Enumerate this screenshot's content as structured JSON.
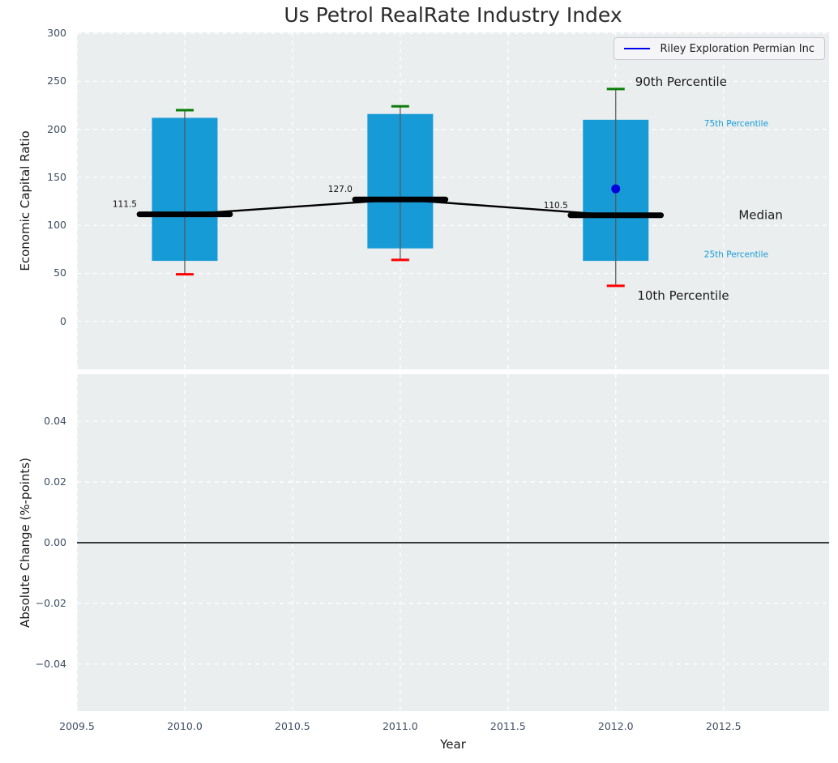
{
  "colors": {
    "box_fill": "#179bd7",
    "whisker_line": "#555555",
    "cap_90": "#0a7d0a",
    "cap_10": "#ff0000",
    "median": "#000000",
    "company_point": "#0000dd",
    "guide_label_blue": "#189cd8",
    "guide_label_dark": "#1a1a1a",
    "grid": "#ffffff",
    "plot_bg": "#eaeeef",
    "tick_text": "#3f4e63",
    "zero_line": "#000000"
  },
  "chart_data": [
    {
      "type": "box",
      "title": "Us Petrol RealRate Industry Index",
      "ylabel": "Economic Capital Ratio",
      "ylim": [
        -50,
        301
      ],
      "xlim": [
        2009.5,
        2012.99
      ],
      "grid": true,
      "yticks": [
        {
          "value": 0,
          "label": "0"
        },
        {
          "value": 50,
          "label": "50"
        },
        {
          "value": 100,
          "label": "100"
        },
        {
          "value": 150,
          "label": "150"
        },
        {
          "value": 200,
          "label": "200"
        },
        {
          "value": 250,
          "label": "250"
        },
        {
          "value": 300,
          "label": "300"
        }
      ],
      "xgrid_ticks": [
        2009.5,
        2010.0,
        2010.5,
        2011.0,
        2011.5,
        2012.0,
        2012.5
      ],
      "legend": {
        "label": "Riley Exploration Permian Inc",
        "position": "upper right"
      },
      "boxes": [
        {
          "x": 2010,
          "p10": 49,
          "p25": 63,
          "median": 111.5,
          "p75": 212,
          "p90": 220,
          "median_label": "111.5"
        },
        {
          "x": 2011,
          "p10": 64,
          "p25": 76,
          "median": 127.0,
          "p75": 216,
          "p90": 224,
          "median_label": "127.0"
        },
        {
          "x": 2012,
          "p10": 37,
          "p25": 63,
          "median": 110.5,
          "p75": 210,
          "p90": 242,
          "median_label": "110.5"
        }
      ],
      "company_point": {
        "x": 2012,
        "y": 138
      },
      "guide_labels": [
        {
          "text": "90th Percentile",
          "x": 2012.09,
          "y": 250,
          "style": "large"
        },
        {
          "text": "75th Percentile",
          "x": 2012.41,
          "y": 206,
          "style": "small-blue"
        },
        {
          "text": "Median",
          "x": 2012.57,
          "y": 111,
          "style": "large"
        },
        {
          "text": "25th Percentile",
          "x": 2012.41,
          "y": 70,
          "style": "small-blue"
        },
        {
          "text": "10th Percentile",
          "x": 2012.1,
          "y": 27,
          "style": "large"
        }
      ]
    },
    {
      "type": "line",
      "ylabel": "Absolute Change (%-points)",
      "xlabel": "Year",
      "ylim": [
        -0.0555,
        0.0555
      ],
      "xlim": [
        2009.5,
        2012.99
      ],
      "grid": true,
      "zero_line": 0.0,
      "series": [],
      "yticks": [
        {
          "value": 0.04,
          "label": "0.04"
        },
        {
          "value": 0.02,
          "label": "0.02"
        },
        {
          "value": 0.0,
          "label": "0.00"
        },
        {
          "value": -0.02,
          "label": "−0.02"
        },
        {
          "value": -0.04,
          "label": "−0.04"
        }
      ],
      "xticks": [
        {
          "value": 2009.5,
          "label": "2009.5"
        },
        {
          "value": 2010.0,
          "label": "2010.0"
        },
        {
          "value": 2010.5,
          "label": "2010.5"
        },
        {
          "value": 2011.0,
          "label": "2011.0"
        },
        {
          "value": 2011.5,
          "label": "2011.5"
        },
        {
          "value": 2012.0,
          "label": "2012.0"
        },
        {
          "value": 2012.5,
          "label": "2012.5"
        }
      ]
    }
  ]
}
